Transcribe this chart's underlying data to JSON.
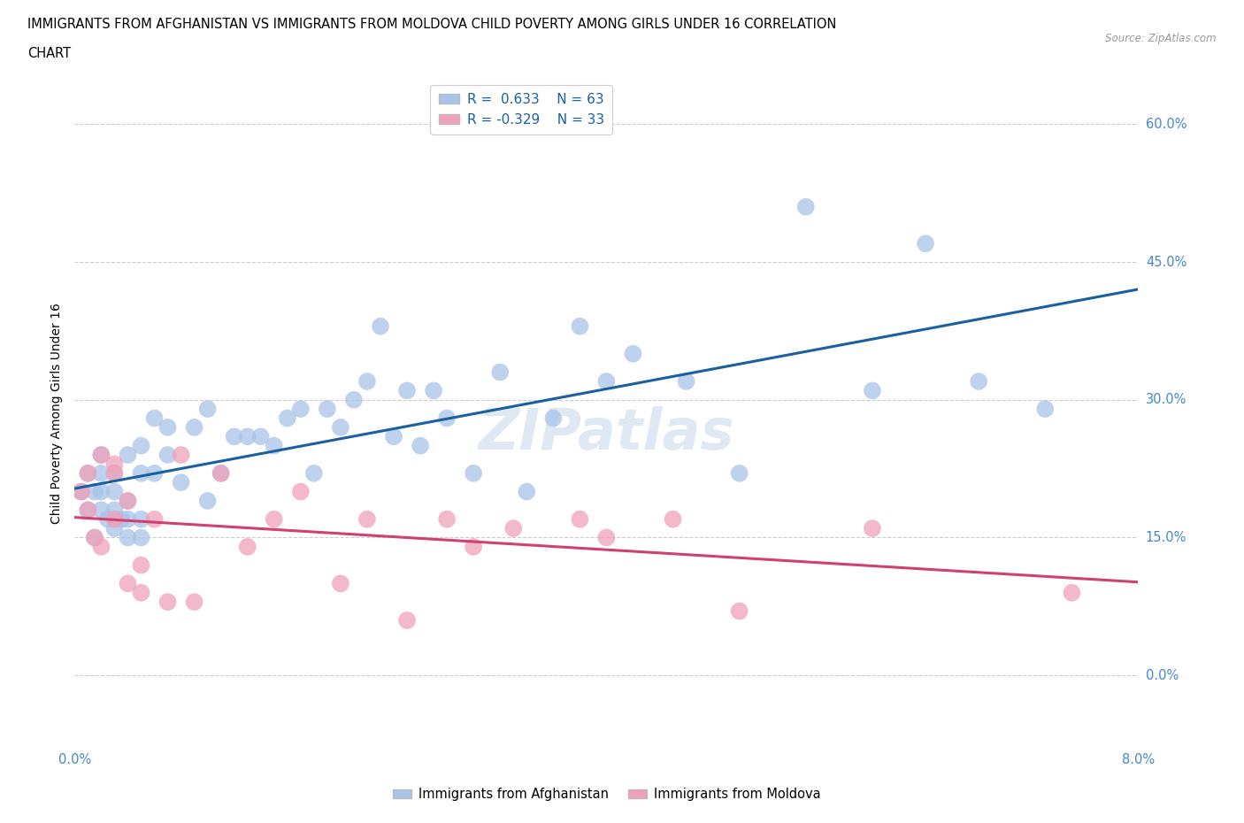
{
  "title_line1": "IMMIGRANTS FROM AFGHANISTAN VS IMMIGRANTS FROM MOLDOVA CHILD POVERTY AMONG GIRLS UNDER 16 CORRELATION",
  "title_line2": "CHART",
  "source": "Source: ZipAtlas.com",
  "ylabel": "Child Poverty Among Girls Under 16",
  "xlim": [
    0.0,
    0.08
  ],
  "ylim": [
    -0.08,
    0.65
  ],
  "yticks": [
    0.0,
    0.15,
    0.3,
    0.45,
    0.6
  ],
  "ytick_labels": [
    "0.0%",
    "15.0%",
    "30.0%",
    "45.0%",
    "60.0%"
  ],
  "xticks": [
    0.0,
    0.02,
    0.04,
    0.06,
    0.08
  ],
  "xtick_labels": [
    "0.0%",
    "",
    "",
    "",
    "8.0%"
  ],
  "afghanistan_R": 0.633,
  "afghanistan_N": 63,
  "moldova_R": -0.329,
  "moldova_N": 33,
  "afghanistan_color": "#a8c4e8",
  "moldova_color": "#f0a0b8",
  "afghanistan_line_color": "#1a5fa0",
  "moldova_line_color": "#d04070",
  "watermark": "ZIPatlas",
  "afghanistan_x": [
    0.0005,
    0.001,
    0.001,
    0.0015,
    0.0015,
    0.002,
    0.002,
    0.002,
    0.002,
    0.0025,
    0.003,
    0.003,
    0.003,
    0.003,
    0.0035,
    0.004,
    0.004,
    0.004,
    0.004,
    0.005,
    0.005,
    0.005,
    0.005,
    0.006,
    0.006,
    0.007,
    0.007,
    0.008,
    0.009,
    0.01,
    0.01,
    0.011,
    0.012,
    0.013,
    0.014,
    0.015,
    0.016,
    0.017,
    0.018,
    0.019,
    0.02,
    0.021,
    0.022,
    0.023,
    0.024,
    0.025,
    0.026,
    0.027,
    0.028,
    0.03,
    0.032,
    0.034,
    0.036,
    0.038,
    0.04,
    0.042,
    0.046,
    0.05,
    0.055,
    0.06,
    0.064,
    0.068,
    0.073
  ],
  "afghanistan_y": [
    0.2,
    0.18,
    0.22,
    0.15,
    0.2,
    0.18,
    0.2,
    0.22,
    0.24,
    0.17,
    0.16,
    0.18,
    0.2,
    0.22,
    0.17,
    0.15,
    0.17,
    0.19,
    0.24,
    0.15,
    0.17,
    0.22,
    0.25,
    0.22,
    0.28,
    0.24,
    0.27,
    0.21,
    0.27,
    0.19,
    0.29,
    0.22,
    0.26,
    0.26,
    0.26,
    0.25,
    0.28,
    0.29,
    0.22,
    0.29,
    0.27,
    0.3,
    0.32,
    0.38,
    0.26,
    0.31,
    0.25,
    0.31,
    0.28,
    0.22,
    0.33,
    0.2,
    0.28,
    0.38,
    0.32,
    0.35,
    0.32,
    0.22,
    0.51,
    0.31,
    0.47,
    0.32,
    0.29
  ],
  "moldova_x": [
    0.0005,
    0.001,
    0.001,
    0.0015,
    0.002,
    0.002,
    0.003,
    0.003,
    0.003,
    0.004,
    0.004,
    0.005,
    0.005,
    0.006,
    0.007,
    0.008,
    0.009,
    0.011,
    0.013,
    0.015,
    0.017,
    0.02,
    0.022,
    0.025,
    0.028,
    0.03,
    0.033,
    0.038,
    0.04,
    0.045,
    0.05,
    0.06,
    0.075
  ],
  "moldova_y": [
    0.2,
    0.18,
    0.22,
    0.15,
    0.24,
    0.14,
    0.23,
    0.17,
    0.22,
    0.1,
    0.19,
    0.09,
    0.12,
    0.17,
    0.08,
    0.24,
    0.08,
    0.22,
    0.14,
    0.17,
    0.2,
    0.1,
    0.17,
    0.06,
    0.17,
    0.14,
    0.16,
    0.17,
    0.15,
    0.17,
    0.07,
    0.16,
    0.09
  ]
}
